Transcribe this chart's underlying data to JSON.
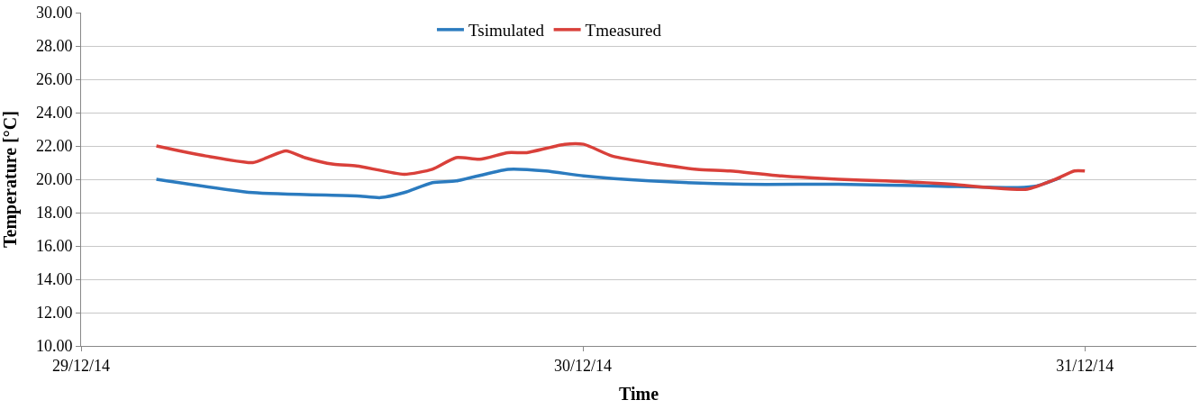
{
  "chart_data": {
    "type": "line",
    "xlabel": "Time",
    "ylabel": "Temperature [°C]",
    "xlim": [
      "--12-29T00:00",
      "--12-31T05:20"
    ],
    "xticks": [
      {
        "value": "--12-29",
        "label": "29/12/14"
      },
      {
        "value": "--12-30",
        "label": "30/12/14"
      },
      {
        "value": "--12-31",
        "label": "31/12/14"
      }
    ],
    "ylim": [
      10,
      30
    ],
    "yticks": [
      {
        "value": 10,
        "label": "10.00"
      },
      {
        "value": 12,
        "label": "12.00"
      },
      {
        "value": 14,
        "label": "14.00"
      },
      {
        "value": 16,
        "label": "16.00"
      },
      {
        "value": 18,
        "label": "18.00"
      },
      {
        "value": 20,
        "label": "20.00"
      },
      {
        "value": 22,
        "label": "22.00"
      },
      {
        "value": 24,
        "label": "24.00"
      },
      {
        "value": 26,
        "label": "26.00"
      },
      {
        "value": 28,
        "label": "28.00"
      },
      {
        "value": 30,
        "label": "30.00"
      }
    ],
    "grid": "y",
    "legend": "top",
    "marker": "none",
    "line_style": "solid",
    "series": [
      {
        "name": "Tsimulated",
        "color": "#2b7bbf",
        "x": [
          "--12-29T03:36",
          "--12-29T08:13",
          "--12-29T13:11",
          "--12-29T14:19",
          "--12-29T15:27",
          "--12-29T16:48",
          "--12-29T17:56",
          "--12-29T20:25",
          "--12-29T22:13",
          "--12-30T00:02",
          "--12-30T03:11",
          "--12-30T07:42",
          "--12-30T12:13",
          "--12-30T16:44",
          "--12-30T20:48",
          "--12-30T21:42",
          "--12-30T22:50"
        ],
        "values": [
          20.0,
          19.2,
          19.0,
          18.9,
          19.2,
          19.8,
          19.9,
          20.6,
          20.5,
          20.2,
          19.9,
          19.7,
          19.7,
          19.6,
          19.5,
          19.6,
          20.1
        ]
      },
      {
        "name": "Tmeasured",
        "color": "#d9403a",
        "x": [
          "--12-29T03:36",
          "--12-29T05:58",
          "--12-29T08:13",
          "--12-29T08:54",
          "--12-29T09:48",
          "--12-29T10:42",
          "--12-29T12:04",
          "--12-29T13:11",
          "--12-29T15:27",
          "--12-29T16:48",
          "--12-29T17:56",
          "--12-29T19:04",
          "--12-29T20:25",
          "--12-29T21:19",
          "--12-29T23:07",
          "--12-30T00:02",
          "--12-30T01:23",
          "--12-30T03:38",
          "--12-30T05:27",
          "--12-30T07:02",
          "--12-30T09:30",
          "--12-30T12:13",
          "--12-30T14:28",
          "--12-30T17:38",
          "--12-30T19:26",
          "--12-30T21:15",
          "--12-30T22:36",
          "--12-30T23:30",
          "--12-31T00:00"
        ],
        "values": [
          22.0,
          21.4,
          21.0,
          21.3,
          21.7,
          21.3,
          20.9,
          20.8,
          20.3,
          20.6,
          21.3,
          21.2,
          21.6,
          21.6,
          22.1,
          22.1,
          21.4,
          20.9,
          20.6,
          20.5,
          20.2,
          20.0,
          19.9,
          19.7,
          19.5,
          19.4,
          20.0,
          20.5,
          20.5
        ]
      }
    ]
  }
}
